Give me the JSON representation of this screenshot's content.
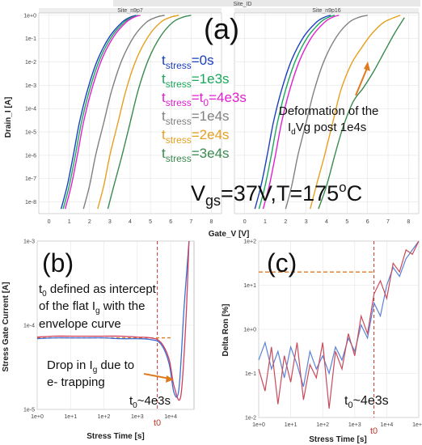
{
  "figure": {
    "header": "Site_ID",
    "vgs_label": "V",
    "vgs_sub": "gs",
    "vgs_rest": "=37V,T=175",
    "vgs_sup": "o",
    "vgs_end": "C"
  },
  "chart_data": [
    {
      "id": "a",
      "type": "line",
      "panel_label": "(a)",
      "facets": [
        "Site_n9p7",
        "Site_n9p16"
      ],
      "xlabel": "Gate_V [V]",
      "ylabel": "Drain_I [A]",
      "x_ticks": [
        "0",
        "1",
        "2",
        "3",
        "4",
        "5",
        "6",
        "7",
        "8"
      ],
      "y_ticks": [
        "1e+0",
        "1e-1",
        "1e-2",
        "1e-3",
        "1e-4",
        "1e-5",
        "1e-6",
        "1e-7",
        "1e-8"
      ],
      "xlim": [
        -0.5,
        8.5
      ],
      "ylim_log10": [
        -8.5,
        0.1
      ],
      "y_scale": "log",
      "legend": [
        {
          "pre": "t",
          "sub": "stress",
          "post": "=0s",
          "color": "#1a3fbf"
        },
        {
          "pre": "t",
          "sub": "stress",
          "post": "=1e3s",
          "color": "#1aa85a"
        },
        {
          "pre": "t",
          "sub": "stress",
          "post": "=t",
          "sub2": "0",
          "post2": "=4e3s",
          "color": "#e020d0"
        },
        {
          "pre": "t",
          "sub": "stress",
          "post": "=1e4s",
          "color": "#808080"
        },
        {
          "pre": "t",
          "sub": "stress",
          "post": "=2e4s",
          "color": "#e6a020"
        },
        {
          "pre": "t",
          "sub": "stress",
          "post": "=3e4s",
          "color": "#3a8a50"
        }
      ],
      "annotation": {
        "line1": "Deformation of the",
        "line2_pre": "I",
        "line2_sub": "d",
        "line2_post": "Vg post 1e4s"
      },
      "series_facet_1": [
        {
          "color": "#1a3fbf",
          "x": [
            0.6,
            0.9,
            1.2,
            1.5,
            1.9,
            2.4,
            3.0,
            3.6,
            4.0,
            4.3
          ],
          "y_log10": [
            -8.3,
            -7.3,
            -6.0,
            -4.6,
            -3.2,
            -1.9,
            -0.9,
            -0.3,
            -0.08,
            0.0
          ]
        },
        {
          "color": "#1aa85a",
          "x": [
            0.7,
            1.0,
            1.3,
            1.6,
            2.0,
            2.5,
            3.1,
            3.7,
            4.1,
            4.4
          ],
          "y_log10": [
            -8.3,
            -7.3,
            -6.0,
            -4.6,
            -3.2,
            -1.9,
            -0.9,
            -0.3,
            -0.08,
            0.0
          ]
        },
        {
          "color": "#e020d0",
          "x": [
            0.8,
            1.1,
            1.4,
            1.7,
            2.1,
            2.6,
            3.2,
            3.8,
            4.2,
            4.5
          ],
          "y_log10": [
            -8.3,
            -7.3,
            -6.0,
            -4.6,
            -3.2,
            -1.9,
            -0.9,
            -0.3,
            -0.08,
            0.0
          ]
        },
        {
          "color": "#808080",
          "x": [
            1.7,
            2.0,
            2.3,
            2.7,
            3.1,
            3.6,
            4.2,
            4.8,
            5.3,
            5.7
          ],
          "y_log10": [
            -8.3,
            -7.3,
            -6.0,
            -4.6,
            -3.2,
            -1.9,
            -0.9,
            -0.3,
            -0.08,
            0.0
          ]
        },
        {
          "color": "#e6a020",
          "x": [
            2.4,
            2.7,
            3.0,
            3.4,
            3.8,
            4.3,
            4.9,
            5.5,
            6.0,
            6.4
          ],
          "y_log10": [
            -8.3,
            -7.3,
            -6.0,
            -4.6,
            -3.2,
            -1.9,
            -0.9,
            -0.3,
            -0.08,
            0.0
          ]
        },
        {
          "color": "#3a8a50",
          "x": [
            2.9,
            3.2,
            3.6,
            4.0,
            4.4,
            4.9,
            5.5,
            6.1,
            6.6,
            7.0
          ],
          "y_log10": [
            -8.3,
            -7.3,
            -6.0,
            -4.6,
            -3.2,
            -1.9,
            -0.9,
            -0.3,
            -0.08,
            0.0
          ]
        }
      ],
      "series_facet_2": [
        {
          "color": "#1a3fbf",
          "x": [
            0.5,
            0.8,
            1.1,
            1.4,
            1.8,
            2.3,
            2.9,
            3.5,
            3.9,
            4.2
          ],
          "y_log10": [
            -8.3,
            -7.3,
            -6.0,
            -4.6,
            -3.2,
            -1.9,
            -0.9,
            -0.3,
            -0.08,
            0.0
          ]
        },
        {
          "color": "#1aa85a",
          "x": [
            0.7,
            1.0,
            1.3,
            1.6,
            2.0,
            2.5,
            3.1,
            3.7,
            4.1,
            4.4
          ],
          "y_log10": [
            -8.3,
            -7.3,
            -6.0,
            -4.6,
            -3.2,
            -1.9,
            -0.9,
            -0.3,
            -0.08,
            0.0
          ]
        },
        {
          "color": "#e020d0",
          "x": [
            0.9,
            1.2,
            1.5,
            1.8,
            2.2,
            2.7,
            3.3,
            3.9,
            4.3,
            4.6
          ],
          "y_log10": [
            -8.3,
            -7.3,
            -6.0,
            -4.6,
            -3.2,
            -1.9,
            -0.9,
            -0.3,
            -0.08,
            0.0
          ]
        },
        {
          "color": "#808080",
          "x": [
            2.0,
            2.3,
            2.6,
            3.0,
            3.4,
            3.9,
            4.5,
            5.1,
            5.6,
            6.0
          ],
          "y_log10": [
            -8.3,
            -7.3,
            -6.0,
            -4.6,
            -3.2,
            -1.9,
            -0.9,
            -0.3,
            -0.08,
            0.0
          ]
        },
        {
          "color": "#e6a020",
          "x": [
            3.2,
            3.5,
            3.9,
            4.3,
            4.7,
            5.2,
            5.7,
            6.2,
            6.8,
            7.6
          ],
          "y_log10": [
            -8.3,
            -7.3,
            -6.0,
            -4.6,
            -3.2,
            -2.1,
            -1.4,
            -0.8,
            -0.3,
            0.0
          ]
        },
        {
          "color": "#3a8a50",
          "x": [
            3.6,
            4.0,
            4.4,
            4.8,
            5.3,
            5.8,
            6.3,
            6.8,
            7.3,
            7.8
          ],
          "y_log10": [
            -8.3,
            -7.3,
            -6.0,
            -4.8,
            -3.7,
            -3.1,
            -2.4,
            -1.6,
            -0.8,
            -0.1
          ]
        }
      ]
    },
    {
      "id": "b",
      "type": "line",
      "panel_label": "(b)",
      "xlabel": "Stress Time [s]",
      "ylabel": "Stress Gate Current [A]",
      "x_scale": "log",
      "y_scale": "log",
      "x_ticks": [
        "1e+0",
        "1e+1",
        "1e+2",
        "1e+3",
        "1e+4"
      ],
      "y_ticks": [
        "1e-3",
        "1e-4",
        "1e-5"
      ],
      "xlim_log10": [
        0,
        4.7
      ],
      "ylim_log10": [
        -5,
        -3
      ],
      "t0_marker": "t0",
      "t0_log10": 3.6,
      "flat_level_log10": -4.15,
      "annotations": [
        {
          "pre": "t",
          "sub": "0",
          "post": " defined as intercept"
        },
        {
          "pre": "of the flat I",
          "sub": "g",
          "post": " with the"
        },
        {
          "pre": "envelope curve",
          "sub": "",
          "post": ""
        },
        {
          "pre": "Drop in I",
          "sub": "g",
          "post": " due to"
        },
        {
          "pre": "e- trapping",
          "sub": "",
          "post": ""
        },
        {
          "pre": "t",
          "sub": "0",
          "post": "~4e3s"
        }
      ],
      "series": [
        {
          "color": "#3b6fd4",
          "x_log10": [
            0,
            0.5,
            1,
            1.5,
            2,
            2.5,
            3,
            3.4,
            3.7,
            3.95,
            4.1,
            4.25,
            4.4,
            4.55
          ],
          "y_log10": [
            -4.16,
            -4.15,
            -4.15,
            -4.15,
            -4.15,
            -4.16,
            -4.16,
            -4.17,
            -4.22,
            -4.45,
            -4.8,
            -4.75,
            -3.8,
            -2.9
          ]
        },
        {
          "color": "#d04060",
          "x_log10": [
            0,
            0.5,
            1,
            1.5,
            2,
            2.5,
            3,
            3.4,
            3.7,
            3.95,
            4.1,
            4.3,
            4.45,
            4.55
          ],
          "y_log10": [
            -4.14,
            -4.13,
            -4.13,
            -4.13,
            -4.13,
            -4.13,
            -4.14,
            -4.15,
            -4.2,
            -4.4,
            -4.72,
            -4.85,
            -4.0,
            -2.9
          ]
        }
      ]
    },
    {
      "id": "c",
      "type": "line",
      "panel_label": "(c)",
      "xlabel": "Stress Time [s]",
      "ylabel": "Delta Ron [%]",
      "x_scale": "log",
      "y_scale": "log",
      "x_ticks": [
        "1e+0",
        "1e+1",
        "1e+2",
        "1e+3",
        "1e+4",
        "1e+5"
      ],
      "y_ticks": [
        "1e+2",
        "1e+1",
        "1e+0",
        "1e-1",
        "1e-2"
      ],
      "xlim_log10": [
        0,
        5
      ],
      "ylim_log10": [
        -2,
        2
      ],
      "t0_marker": "t0",
      "t0_log10": 3.6,
      "ref_level_log10": 1.3,
      "annotation": {
        "pre": "t",
        "sub": "0",
        "post": "~4e3s"
      },
      "series": [
        {
          "color": "#5b82d6",
          "x_log10": [
            0,
            0.2,
            0.4,
            0.6,
            0.8,
            1.0,
            1.2,
            1.4,
            1.6,
            1.8,
            2.0,
            2.2,
            2.4,
            2.6,
            2.8,
            3.0,
            3.2,
            3.4,
            3.6,
            3.8,
            4.0,
            4.2,
            4.4,
            4.6,
            4.8,
            5.0
          ],
          "y_log10": [
            -0.7,
            -0.3,
            -0.9,
            -0.5,
            -1.1,
            -0.4,
            -0.8,
            -1.3,
            -0.5,
            -0.9,
            -0.6,
            -1.0,
            -0.4,
            -0.7,
            -0.2,
            -0.5,
            0.1,
            -0.2,
            0.6,
            0.3,
            1.0,
            1.4,
            1.2,
            1.6,
            1.8,
            2.0
          ]
        },
        {
          "color": "#c94a5a",
          "x_log10": [
            0,
            0.2,
            0.4,
            0.6,
            0.8,
            1.0,
            1.2,
            1.4,
            1.6,
            1.8,
            2.0,
            2.2,
            2.4,
            2.6,
            2.8,
            3.0,
            3.2,
            3.4,
            3.6,
            3.8,
            4.0,
            4.2,
            4.4,
            4.6,
            4.8,
            5.0
          ],
          "y_log10": [
            -0.9,
            -1.4,
            -0.4,
            -1.7,
            -0.6,
            -1.2,
            -0.3,
            -1.6,
            -0.8,
            -1.1,
            -0.3,
            -1.8,
            -0.5,
            -0.9,
            -0.1,
            -0.6,
            0.3,
            -0.1,
            0.8,
            1.1,
            0.7,
            1.5,
            1.3,
            1.8,
            1.7,
            2.0
          ]
        }
      ]
    }
  ]
}
